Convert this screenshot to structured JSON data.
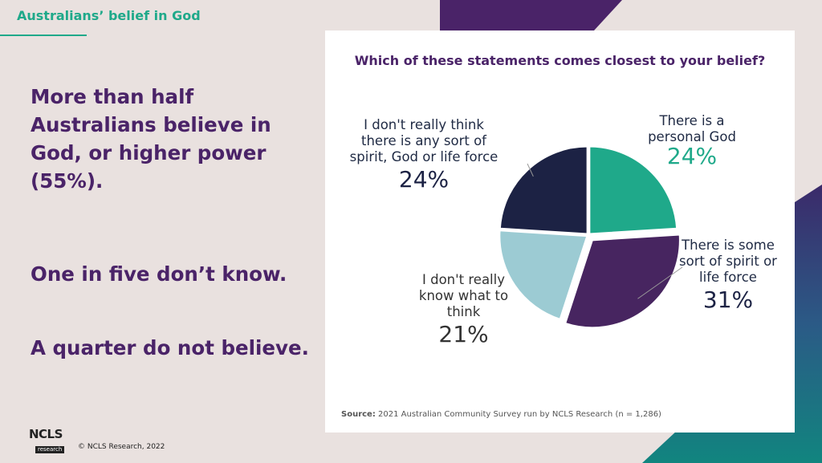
{
  "page": {
    "header_title": "Australians’ belief in God",
    "headline_1": "More than half Australians believe in God, or higher power (55%).",
    "headline_2": "One in five don’t know.",
    "headline_3": "A quarter do not believe.",
    "logo_text": "NCLS",
    "logo_subtext": "research",
    "copyright": "© NCLS Research, 2022"
  },
  "colors": {
    "brand_purple": "#4a2368",
    "brand_teal": "#1fa98a",
    "navy": "#1c2244",
    "light_blue": "#9ccbd3",
    "gray_text": "#444444"
  },
  "chart_data": {
    "type": "pie",
    "title": "Which of these statements comes closest to your belief?",
    "slices": [
      {
        "label": "There is a personal God",
        "value": 24,
        "display": "24%",
        "color": "#1fa98a",
        "exploded": false
      },
      {
        "label": "There is some sort of spirit or life force",
        "value": 31,
        "display": "31%",
        "color": "#472560",
        "exploded": true
      },
      {
        "label": "I don't really know what to think",
        "value": 21,
        "display": "21%",
        "color": "#9ccbd3",
        "exploded": false
      },
      {
        "label": "I don't really think there is any sort of spirit, God or life force",
        "value": 24,
        "display": "24%",
        "color": "#1c2244",
        "exploded": false
      }
    ],
    "source_label": "Source:",
    "source_text": "2021 Australian Community Survey run by NCLS Research (n = 1,286)"
  }
}
